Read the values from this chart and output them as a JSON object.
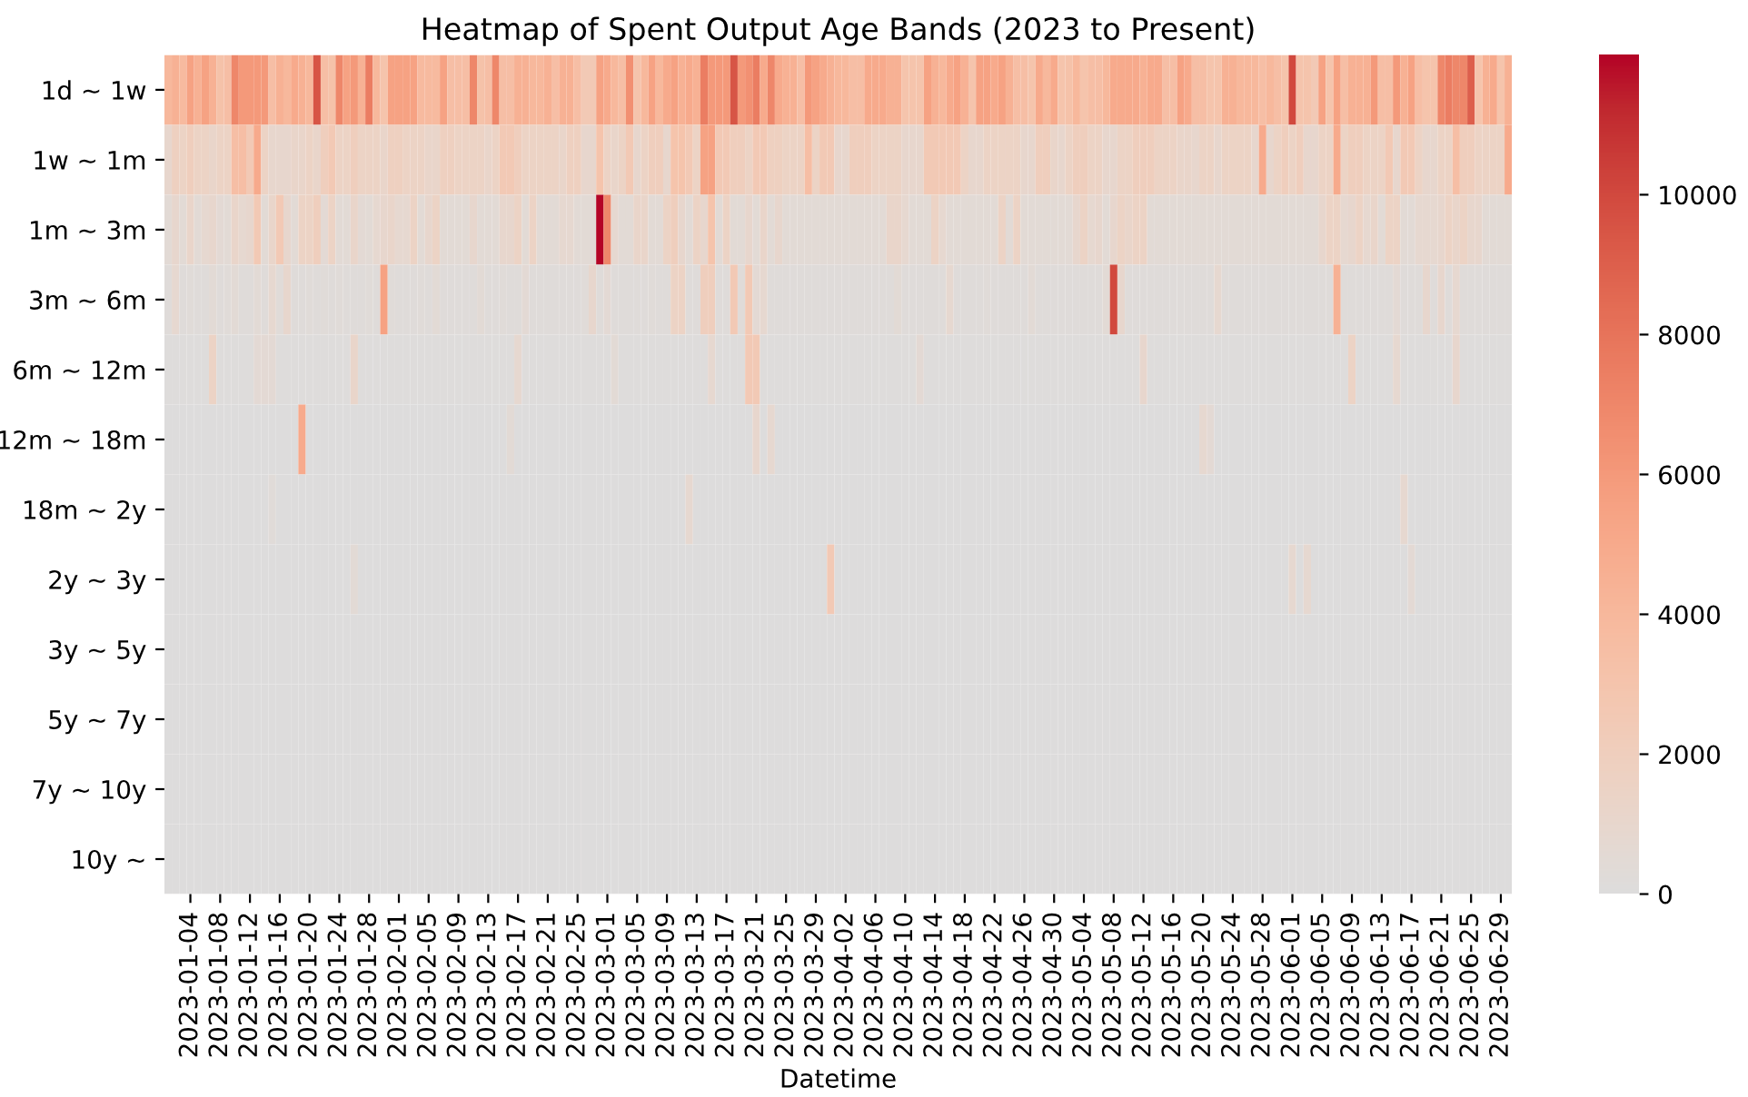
{
  "chart_data": {
    "type": "heatmap",
    "title": "Heatmap of Spent Output Age Bands (2023 to Present)",
    "xlabel": "Datetime",
    "categories": [
      null,
      null,
      null,
      "2023-01-04",
      null,
      null,
      null,
      "2023-01-08",
      null,
      null,
      null,
      "2023-01-12",
      null,
      null,
      null,
      "2023-01-16",
      null,
      null,
      null,
      "2023-01-20",
      null,
      null,
      null,
      "2023-01-24",
      null,
      null,
      null,
      "2023-01-28",
      null,
      null,
      null,
      "2023-02-01",
      null,
      null,
      null,
      "2023-02-05",
      null,
      null,
      null,
      "2023-02-09",
      null,
      null,
      null,
      "2023-02-13",
      null,
      null,
      null,
      "2023-02-17",
      null,
      null,
      null,
      "2023-02-21",
      null,
      null,
      null,
      "2023-02-25",
      null,
      null,
      null,
      "2023-03-01",
      null,
      null,
      null,
      "2023-03-05",
      null,
      null,
      null,
      "2023-03-09",
      null,
      null,
      null,
      "2023-03-13",
      null,
      null,
      null,
      "2023-03-17",
      null,
      null,
      null,
      "2023-03-21",
      null,
      null,
      null,
      "2023-03-25",
      null,
      null,
      null,
      "2023-03-29",
      null,
      null,
      null,
      "2023-04-02",
      null,
      null,
      null,
      "2023-04-06",
      null,
      null,
      null,
      "2023-04-10",
      null,
      null,
      null,
      "2023-04-14",
      null,
      null,
      null,
      "2023-04-18",
      null,
      null,
      null,
      "2023-04-22",
      null,
      null,
      null,
      "2023-04-26",
      null,
      null,
      null,
      "2023-04-30",
      null,
      null,
      null,
      "2023-05-04",
      null,
      null,
      null,
      "2023-05-08",
      null,
      null,
      null,
      "2023-05-12",
      null,
      null,
      null,
      "2023-05-16",
      null,
      null,
      null,
      "2023-05-20",
      null,
      null,
      null,
      "2023-05-24",
      null,
      null,
      null,
      "2023-05-28",
      null,
      null,
      null,
      "2023-06-01",
      null,
      null,
      null,
      "2023-06-05",
      null,
      null,
      null,
      "2023-06-09",
      null,
      null,
      null,
      "2023-06-13",
      null,
      null,
      null,
      "2023-06-17",
      null,
      null,
      null,
      "2023-06-21",
      null,
      null,
      null,
      "2023-06-25",
      null,
      null,
      null,
      "2023-06-29",
      null
    ],
    "y_categories": [
      "1d ~ 1w",
      "1w ~ 1m",
      "1m ~ 3m",
      "3m ~ 6m",
      "6m ~ 12m",
      "12m ~ 18m",
      "18m ~ 2y",
      "2y ~ 3y",
      "3y ~ 5y",
      "5y ~ 7y",
      "7y ~ 10y",
      "10y ~"
    ],
    "clim": [
      0,
      12000
    ],
    "cticks": [
      0,
      2000,
      4000,
      6000,
      8000,
      10000
    ],
    "cells": [
      [
        4000,
        4500,
        3800,
        5500,
        4500,
        5500,
        4500,
        3200,
        3500,
        7000,
        6000,
        6000,
        6000,
        6000,
        3500,
        4500,
        4000,
        5000,
        4500,
        4000,
        9500,
        3500,
        3200,
        7000,
        5500,
        6000,
        4500,
        7500,
        4000,
        3000,
        5500,
        5500,
        5500,
        5500,
        3800,
        3800,
        3800,
        5500,
        3500,
        3500,
        3500,
        7000,
        3200,
        3500,
        7000,
        3500,
        3500,
        4500,
        4500,
        4000,
        4000,
        4500,
        3500,
        4500,
        4500,
        3500,
        2500,
        2500,
        5500,
        5000,
        4000,
        3500,
        6500,
        3000,
        4000,
        5500,
        4000,
        5000,
        5500,
        4500,
        5000,
        4500,
        7500,
        6000,
        6000,
        6000,
        9500,
        6000,
        6500,
        7500,
        5000,
        7000,
        5000,
        4500,
        4500,
        3500,
        6000,
        5500,
        5000,
        4500,
        4000,
        4000,
        3500,
        3500,
        5000,
        5000,
        5000,
        4500,
        4500,
        3000,
        3000,
        3000,
        5500,
        4500,
        4000,
        5000,
        5500,
        4500,
        3000,
        5500,
        5500,
        5000,
        5500,
        4500,
        3500,
        3500,
        3000,
        5000,
        4000,
        5000,
        3000,
        3200,
        4000,
        3000,
        3500,
        3500,
        4000,
        5000,
        5000,
        5000,
        5000,
        4500,
        5000,
        5000,
        3500,
        3500,
        5500,
        5000,
        3500,
        3500,
        3000,
        3000,
        4500,
        4500,
        4000,
        4000,
        4000,
        3500,
        4000,
        3500,
        3000,
        10000,
        3000,
        3000,
        2500,
        5500,
        3000,
        5500,
        3500,
        4500,
        4500,
        4500,
        6000,
        3500,
        3500,
        6000,
        4500,
        5500,
        3500,
        3000,
        3000,
        7000,
        7500,
        7000,
        7000,
        9000,
        3000,
        4500,
        5000,
        3000,
        4500
      ],
      [
        1000,
        1800,
        1500,
        2000,
        1500,
        1500,
        1200,
        1500,
        1500,
        3500,
        3500,
        2500,
        5000,
        1500,
        1000,
        1000,
        1000,
        1200,
        1200,
        1500,
        1200,
        2000,
        2500,
        1500,
        1500,
        2000,
        1500,
        1500,
        1500,
        1200,
        1800,
        1800,
        1500,
        1500,
        1500,
        1200,
        1200,
        1800,
        1800,
        1500,
        1500,
        1500,
        1500,
        1200,
        1500,
        2500,
        2500,
        2000,
        1500,
        1500,
        1500,
        1500,
        1500,
        1200,
        1800,
        1800,
        1000,
        1000,
        3000,
        1500,
        1200,
        1500,
        2500,
        1000,
        1500,
        2000,
        2000,
        1000,
        3000,
        3000,
        2500,
        1500,
        5500,
        5500,
        2500,
        2500,
        2000,
        2000,
        1500,
        2500,
        2500,
        1800,
        1800,
        1500,
        1500,
        1500,
        3500,
        1500,
        2500,
        2500,
        1000,
        1000,
        2000,
        2000,
        2000,
        1500,
        1500,
        1500,
        1500,
        1000,
        1000,
        1000,
        2500,
        2500,
        2500,
        2500,
        2500,
        1500,
        1000,
        1000,
        1500,
        1500,
        1500,
        1500,
        1500,
        1000,
        1000,
        2000,
        2000,
        1200,
        1000,
        1500,
        2000,
        2000,
        1500,
        1500,
        1000,
        1000,
        1500,
        1500,
        2000,
        2000,
        2000,
        1500,
        1500,
        1500,
        1200,
        1200,
        1000,
        1500,
        1500,
        1000,
        1500,
        1500,
        1500,
        1500,
        1000,
        5000,
        1000,
        1500,
        2000,
        1500,
        2000,
        1000,
        1000,
        1500,
        1500,
        5000,
        1500,
        2000,
        2000,
        1500,
        1500,
        1500,
        2500,
        1000,
        2500,
        2500,
        1500,
        1000,
        1000,
        1500,
        1500,
        3500,
        2000,
        2000,
        1500,
        1500,
        1500,
        1500,
        5000
      ],
      [
        500,
        1000,
        500,
        1200,
        500,
        800,
        1000,
        600,
        500,
        1200,
        800,
        1000,
        2500,
        500,
        1200,
        2500,
        1000,
        500,
        1500,
        1500,
        2000,
        600,
        1500,
        500,
        500,
        1200,
        600,
        500,
        800,
        1000,
        1200,
        800,
        800,
        1500,
        500,
        1000,
        1500,
        500,
        500,
        500,
        500,
        1000,
        500,
        500,
        500,
        1000,
        1000,
        1500,
        500,
        1500,
        500,
        500,
        500,
        800,
        800,
        500,
        500,
        500,
        12000,
        7000,
        800,
        500,
        500,
        1200,
        1200,
        500,
        500,
        1500,
        2000,
        1000,
        500,
        1500,
        1000,
        3000,
        500,
        1500,
        500,
        500,
        1000,
        500,
        1200,
        500,
        1000,
        500,
        500,
        500,
        500,
        500,
        500,
        500,
        500,
        500,
        500,
        500,
        500,
        500,
        500,
        1200,
        1200,
        800,
        500,
        500,
        500,
        1500,
        800,
        500,
        500,
        500,
        500,
        500,
        500,
        500,
        1500,
        500,
        1500,
        500,
        500,
        500,
        500,
        500,
        500,
        500,
        1000,
        1500,
        800,
        1000,
        500,
        1000,
        1500,
        1200,
        1500,
        1500,
        500,
        500,
        500,
        500,
        500,
        500,
        500,
        500,
        500,
        500,
        500,
        500,
        500,
        500,
        500,
        500,
        500,
        500,
        500,
        500,
        500,
        500,
        500,
        1000,
        1500,
        1500,
        800,
        1000,
        1500,
        800,
        1200,
        500,
        1500,
        1500,
        500,
        500,
        800,
        800,
        800,
        1000,
        1500,
        1200,
        1500,
        1000,
        1000,
        500,
        500,
        500,
        500
      ],
      [
        200,
        800,
        200,
        300,
        200,
        200,
        500,
        200,
        300,
        500,
        200,
        200,
        500,
        200,
        800,
        300,
        1000,
        200,
        200,
        300,
        200,
        300,
        200,
        300,
        200,
        200,
        200,
        300,
        200,
        5500,
        300,
        200,
        200,
        200,
        300,
        200,
        500,
        200,
        200,
        200,
        200,
        200,
        500,
        200,
        200,
        300,
        200,
        200,
        600,
        200,
        200,
        200,
        200,
        200,
        200,
        200,
        300,
        1000,
        200,
        600,
        200,
        200,
        200,
        200,
        200,
        300,
        200,
        200,
        1500,
        1500,
        200,
        200,
        2000,
        2000,
        200,
        200,
        2500,
        300,
        2500,
        600,
        800,
        200,
        200,
        200,
        200,
        200,
        200,
        200,
        200,
        200,
        200,
        200,
        200,
        200,
        200,
        200,
        200,
        200,
        500,
        200,
        200,
        200,
        200,
        200,
        200,
        800,
        200,
        200,
        200,
        200,
        300,
        200,
        200,
        200,
        200,
        200,
        500,
        200,
        200,
        200,
        200,
        200,
        200,
        200,
        200,
        200,
        500,
        10000,
        1000,
        200,
        200,
        200,
        200,
        200,
        200,
        200,
        200,
        200,
        200,
        200,
        200,
        800,
        200,
        200,
        200,
        200,
        200,
        200,
        200,
        200,
        200,
        200,
        200,
        200,
        200,
        200,
        200,
        4500,
        200,
        200,
        200,
        200,
        200,
        200,
        200,
        600,
        200,
        200,
        200,
        1000,
        200,
        1000,
        200,
        800,
        200,
        200,
        200,
        200,
        200,
        200,
        200
      ],
      [
        100,
        100,
        100,
        100,
        100,
        100,
        1500,
        100,
        100,
        100,
        100,
        100,
        600,
        600,
        600,
        100,
        100,
        100,
        100,
        100,
        100,
        100,
        100,
        100,
        100,
        1200,
        100,
        100,
        100,
        100,
        100,
        100,
        100,
        100,
        100,
        100,
        100,
        100,
        100,
        100,
        100,
        100,
        100,
        100,
        100,
        100,
        100,
        800,
        100,
        100,
        100,
        100,
        100,
        100,
        100,
        100,
        100,
        100,
        100,
        100,
        500,
        100,
        100,
        100,
        100,
        100,
        100,
        100,
        100,
        100,
        100,
        100,
        100,
        800,
        100,
        100,
        100,
        100,
        2500,
        2500,
        100,
        100,
        100,
        100,
        100,
        100,
        100,
        100,
        100,
        100,
        100,
        100,
        100,
        100,
        100,
        100,
        100,
        100,
        100,
        100,
        100,
        600,
        100,
        100,
        100,
        100,
        100,
        100,
        100,
        100,
        100,
        100,
        100,
        100,
        100,
        100,
        100,
        100,
        100,
        100,
        100,
        100,
        100,
        100,
        100,
        100,
        100,
        100,
        100,
        100,
        100,
        1000,
        100,
        100,
        100,
        100,
        100,
        100,
        100,
        100,
        100,
        100,
        100,
        100,
        100,
        100,
        100,
        100,
        100,
        100,
        100,
        100,
        100,
        100,
        100,
        100,
        100,
        100,
        100,
        1500,
        100,
        100,
        100,
        100,
        100,
        800,
        100,
        100,
        100,
        100,
        100,
        100,
        100,
        1000,
        100,
        100,
        100,
        100,
        100,
        100,
        100
      ],
      [
        0,
        0,
        0,
        0,
        0,
        0,
        0,
        0,
        0,
        0,
        0,
        0,
        0,
        0,
        0,
        0,
        0,
        0,
        5000,
        0,
        0,
        0,
        0,
        0,
        0,
        0,
        0,
        0,
        0,
        0,
        0,
        0,
        0,
        0,
        0,
        0,
        0,
        0,
        0,
        0,
        0,
        0,
        0,
        0,
        0,
        0,
        500,
        0,
        0,
        0,
        0,
        0,
        0,
        0,
        0,
        0,
        0,
        0,
        0,
        0,
        0,
        0,
        0,
        0,
        0,
        0,
        0,
        0,
        0,
        0,
        0,
        0,
        0,
        0,
        0,
        0,
        0,
        0,
        0,
        1000,
        0,
        800,
        0,
        0,
        0,
        0,
        0,
        0,
        0,
        0,
        0,
        0,
        0,
        0,
        0,
        0,
        0,
        0,
        0,
        0,
        0,
        0,
        0,
        0,
        0,
        0,
        0,
        0,
        0,
        0,
        0,
        0,
        0,
        0,
        0,
        0,
        0,
        0,
        0,
        0,
        0,
        0,
        0,
        0,
        0,
        0,
        0,
        0,
        0,
        0,
        0,
        0,
        0,
        0,
        0,
        0,
        0,
        0,
        0,
        800,
        600,
        0,
        0,
        0,
        0,
        0,
        0,
        0,
        0,
        0,
        0,
        0,
        0,
        0,
        0,
        0,
        0,
        0,
        0,
        0,
        0,
        0,
        0,
        0,
        0,
        0,
        0,
        0,
        0,
        0,
        0,
        0,
        0,
        0,
        0,
        0,
        0,
        0,
        0,
        0,
        0
      ],
      [
        0,
        0,
        0,
        0,
        0,
        0,
        0,
        0,
        0,
        0,
        0,
        0,
        0,
        0,
        300,
        0,
        0,
        0,
        0,
        0,
        0,
        0,
        0,
        0,
        0,
        0,
        0,
        0,
        0,
        0,
        0,
        0,
        0,
        0,
        0,
        0,
        0,
        0,
        0,
        0,
        0,
        0,
        0,
        0,
        0,
        0,
        0,
        0,
        0,
        0,
        0,
        0,
        0,
        0,
        0,
        0,
        0,
        0,
        0,
        0,
        0,
        0,
        0,
        0,
        0,
        0,
        0,
        0,
        0,
        0,
        800,
        0,
        0,
        0,
        0,
        0,
        0,
        0,
        0,
        0,
        0,
        0,
        0,
        0,
        0,
        0,
        0,
        0,
        0,
        0,
        0,
        0,
        0,
        0,
        0,
        0,
        0,
        0,
        0,
        0,
        0,
        0,
        0,
        0,
        0,
        0,
        0,
        0,
        0,
        0,
        0,
        0,
        0,
        0,
        0,
        0,
        0,
        0,
        0,
        0,
        0,
        0,
        0,
        0,
        0,
        0,
        0,
        0,
        0,
        0,
        0,
        0,
        0,
        0,
        0,
        0,
        0,
        0,
        0,
        0,
        0,
        0,
        0,
        0,
        0,
        0,
        0,
        0,
        0,
        0,
        0,
        0,
        0,
        0,
        0,
        0,
        0,
        0,
        0,
        0,
        0,
        0,
        0,
        0,
        0,
        0,
        800,
        0,
        0,
        0,
        0,
        0,
        0,
        0,
        0,
        0,
        0,
        0,
        0,
        0,
        0
      ],
      [
        0,
        0,
        0,
        0,
        0,
        0,
        0,
        0,
        0,
        0,
        0,
        0,
        0,
        0,
        0,
        0,
        0,
        0,
        0,
        0,
        0,
        0,
        0,
        0,
        0,
        500,
        0,
        0,
        0,
        0,
        0,
        0,
        0,
        0,
        0,
        0,
        0,
        0,
        0,
        0,
        0,
        0,
        0,
        0,
        0,
        0,
        0,
        0,
        0,
        0,
        0,
        0,
        0,
        0,
        0,
        0,
        0,
        0,
        0,
        0,
        0,
        0,
        0,
        0,
        0,
        0,
        0,
        0,
        0,
        0,
        0,
        0,
        0,
        0,
        0,
        0,
        0,
        0,
        0,
        0,
        0,
        0,
        0,
        0,
        0,
        0,
        0,
        0,
        0,
        2500,
        0,
        0,
        0,
        0,
        0,
        0,
        0,
        0,
        0,
        0,
        0,
        0,
        0,
        0,
        0,
        0,
        0,
        0,
        0,
        0,
        0,
        0,
        0,
        0,
        0,
        0,
        0,
        0,
        0,
        0,
        0,
        0,
        0,
        0,
        0,
        0,
        0,
        0,
        0,
        0,
        0,
        0,
        0,
        0,
        0,
        0,
        0,
        0,
        0,
        0,
        0,
        0,
        0,
        0,
        0,
        0,
        0,
        0,
        0,
        0,
        0,
        800,
        0,
        800,
        0,
        0,
        0,
        0,
        0,
        0,
        0,
        0,
        0,
        0,
        0,
        0,
        0,
        600,
        0,
        0,
        0,
        0,
        0,
        0,
        0,
        0,
        0,
        0,
        0,
        0,
        0
      ],
      [
        0,
        0,
        0,
        0,
        0,
        0,
        0,
        0,
        0,
        0,
        0,
        0,
        0,
        0,
        0,
        0,
        0,
        0,
        0,
        0,
        0,
        0,
        0,
        0,
        0,
        0,
        0,
        0,
        0,
        0,
        0,
        0,
        0,
        0,
        0,
        0,
        0,
        0,
        0,
        0,
        0,
        0,
        0,
        0,
        0,
        0,
        0,
        0,
        0,
        0,
        0,
        0,
        0,
        0,
        0,
        0,
        0,
        0,
        0,
        0,
        0,
        0,
        0,
        0,
        0,
        0,
        0,
        0,
        0,
        0,
        0,
        0,
        0,
        0,
        0,
        0,
        0,
        0,
        0,
        0,
        0,
        0,
        0,
        0,
        0,
        0,
        0,
        0,
        0,
        0,
        0,
        0,
        0,
        0,
        0,
        0,
        0,
        0,
        0,
        0,
        0,
        0,
        0,
        0,
        0,
        0,
        0,
        0,
        0,
        0,
        0,
        0,
        0,
        0,
        0,
        0,
        0,
        0,
        0,
        0,
        0,
        0,
        0,
        0,
        0,
        0,
        0,
        0,
        0,
        0,
        0,
        0,
        0,
        0,
        0,
        0,
        0,
        0,
        0,
        0,
        0,
        0,
        0,
        0,
        0,
        0,
        0,
        0,
        0,
        0,
        0,
        0,
        0,
        0,
        0,
        0,
        0,
        0,
        0,
        0,
        0,
        0,
        0,
        0,
        0,
        0,
        0,
        0,
        0,
        0,
        0,
        0,
        0,
        0,
        0,
        0,
        0,
        0,
        0,
        0,
        0
      ],
      [
        0,
        0,
        0,
        0,
        0,
        0,
        0,
        0,
        0,
        0,
        0,
        0,
        0,
        0,
        0,
        0,
        0,
        0,
        0,
        0,
        0,
        0,
        0,
        0,
        0,
        0,
        0,
        0,
        0,
        0,
        0,
        0,
        0,
        0,
        0,
        0,
        0,
        0,
        0,
        0,
        0,
        0,
        0,
        0,
        0,
        0,
        0,
        0,
        0,
        0,
        0,
        0,
        0,
        0,
        0,
        0,
        0,
        0,
        0,
        0,
        0,
        0,
        0,
        0,
        0,
        0,
        0,
        0,
        0,
        0,
        0,
        0,
        0,
        0,
        0,
        0,
        0,
        0,
        0,
        0,
        0,
        0,
        0,
        0,
        0,
        0,
        0,
        0,
        0,
        0,
        0,
        0,
        0,
        0,
        0,
        0,
        0,
        0,
        0,
        0,
        0,
        0,
        0,
        0,
        0,
        0,
        0,
        0,
        0,
        0,
        0,
        0,
        0,
        0,
        0,
        0,
        0,
        0,
        0,
        0,
        0,
        0,
        0,
        0,
        0,
        0,
        0,
        0,
        0,
        0,
        0,
        0,
        0,
        0,
        0,
        0,
        0,
        0,
        0,
        0,
        0,
        0,
        0,
        0,
        0,
        0,
        0,
        0,
        0,
        0,
        0,
        0,
        0,
        0,
        0,
        0,
        0,
        0,
        0,
        0,
        0,
        0,
        0,
        0,
        0,
        0,
        0,
        0,
        0,
        0,
        0,
        0,
        0,
        0,
        0,
        0,
        0,
        0,
        0,
        0,
        0
      ],
      [
        0,
        0,
        0,
        0,
        0,
        0,
        0,
        0,
        0,
        0,
        0,
        0,
        0,
        0,
        0,
        0,
        0,
        0,
        0,
        0,
        0,
        0,
        0,
        0,
        0,
        0,
        0,
        0,
        0,
        0,
        0,
        0,
        0,
        0,
        0,
        0,
        0,
        0,
        0,
        0,
        0,
        0,
        0,
        0,
        0,
        0,
        0,
        0,
        0,
        0,
        0,
        0,
        0,
        0,
        0,
        0,
        0,
        0,
        0,
        0,
        0,
        0,
        0,
        0,
        0,
        0,
        0,
        0,
        0,
        0,
        0,
        0,
        0,
        0,
        0,
        0,
        0,
        0,
        0,
        0,
        0,
        0,
        0,
        0,
        0,
        0,
        0,
        0,
        0,
        0,
        0,
        0,
        0,
        0,
        0,
        0,
        0,
        0,
        0,
        0,
        0,
        0,
        0,
        0,
        0,
        0,
        0,
        0,
        0,
        0,
        0,
        0,
        0,
        0,
        0,
        0,
        0,
        0,
        0,
        0,
        0,
        0,
        0,
        0,
        0,
        0,
        0,
        0,
        0,
        0,
        0,
        0,
        0,
        0,
        0,
        0,
        0,
        0,
        0,
        0,
        0,
        0,
        0,
        0,
        0,
        0,
        0,
        0,
        0,
        0,
        0,
        0,
        0,
        0,
        0,
        0,
        0,
        0,
        0,
        0,
        0,
        0,
        0,
        0,
        0,
        0,
        0,
        0,
        0,
        0,
        0,
        0,
        0,
        0,
        0,
        0,
        0,
        0,
        0,
        0,
        0
      ],
      [
        0,
        0,
        0,
        0,
        0,
        0,
        0,
        0,
        0,
        0,
        0,
        0,
        0,
        0,
        0,
        0,
        0,
        0,
        0,
        0,
        0,
        0,
        0,
        0,
        0,
        0,
        0,
        0,
        0,
        0,
        0,
        0,
        0,
        0,
        0,
        0,
        0,
        0,
        0,
        0,
        0,
        0,
        0,
        0,
        0,
        0,
        0,
        0,
        0,
        0,
        0,
        0,
        0,
        0,
        0,
        0,
        0,
        0,
        0,
        0,
        0,
        0,
        0,
        0,
        0,
        0,
        0,
        0,
        0,
        0,
        0,
        0,
        0,
        0,
        0,
        0,
        0,
        0,
        0,
        0,
        0,
        0,
        0,
        0,
        0,
        0,
        0,
        0,
        0,
        0,
        0,
        0,
        0,
        0,
        0,
        0,
        0,
        0,
        0,
        0,
        0,
        0,
        0,
        0,
        0,
        0,
        0,
        0,
        0,
        0,
        0,
        0,
        0,
        0,
        0,
        0,
        0,
        0,
        0,
        0,
        0,
        0,
        0,
        0,
        0,
        0,
        0,
        0,
        0,
        0,
        0,
        0,
        0,
        0,
        0,
        0,
        0,
        0,
        0,
        0,
        0,
        0,
        0,
        0,
        0,
        0,
        0,
        0,
        0,
        0,
        0,
        0,
        0,
        0,
        0,
        0,
        0,
        0,
        0,
        0,
        0,
        0,
        0,
        0,
        0,
        0,
        0,
        0,
        0,
        0,
        0,
        0,
        0,
        0,
        0,
        0,
        0,
        0,
        0,
        0,
        0
      ]
    ]
  }
}
